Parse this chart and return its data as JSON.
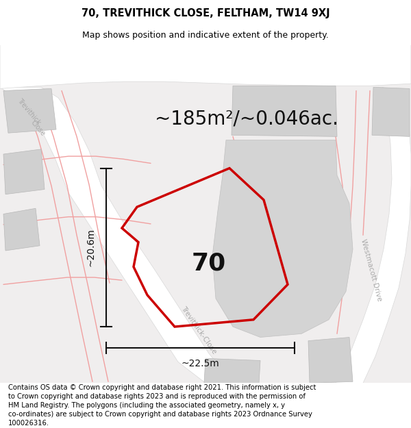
{
  "title": "70, TREVITHICK CLOSE, FELTHAM, TW14 9XJ",
  "subtitle": "Map shows position and indicative extent of the property.",
  "area_text": "~185m²/~0.046ac.",
  "label_number": "70",
  "dim_height": "~20.6m",
  "dim_width": "~22.5m",
  "footer": "Contains OS data © Crown copyright and database right 2021. This information is subject to Crown copyright and database rights 2023 and is reproduced with the permission of HM Land Registry. The polygons (including the associated geometry, namely x, y co-ordinates) are subject to Crown copyright and database rights 2023 Ordnance Survey 100026316.",
  "bg_color": "#f0eeee",
  "road_white": "#ffffff",
  "road_gray": "#d8d8d8",
  "building_color": "#d0d0d0",
  "cadastral_color": "#f0a0a0",
  "plot_color": "#cc0000",
  "dim_color": "#111111",
  "title_fontsize": 10.5,
  "subtitle_fontsize": 9,
  "area_fontsize": 20,
  "number_fontsize": 26,
  "dim_fontsize": 10,
  "footer_fontsize": 7.2,
  "fig_width": 6.0,
  "fig_height": 6.25
}
